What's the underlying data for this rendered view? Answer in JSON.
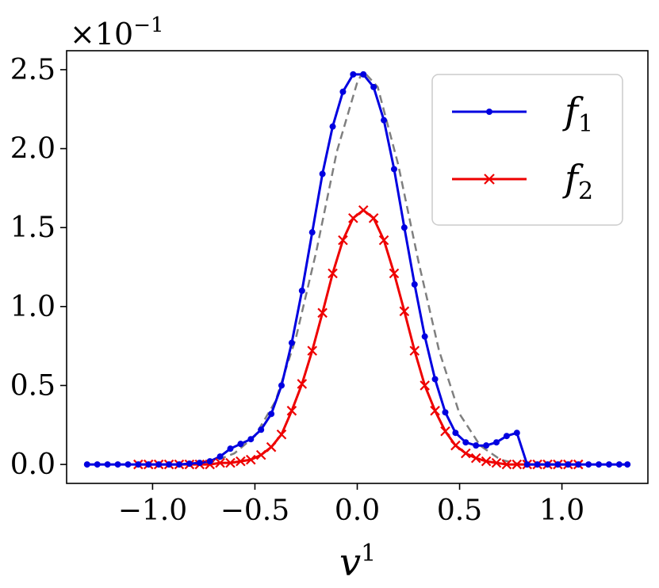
{
  "chart_data": {
    "type": "line",
    "xlabel": "v",
    "xlabel_sup": "1",
    "ylabel": "",
    "scale_factor": {
      "base": "×10",
      "exp": "−1"
    },
    "xlim": [
      -1.42,
      1.42
    ],
    "ylim": [
      -0.12,
      2.62
    ],
    "xticks": [
      {
        "value": -1.0,
        "label": "−1.0"
      },
      {
        "value": -0.5,
        "label": "−0.5"
      },
      {
        "value": 0.0,
        "label": "0.0"
      },
      {
        "value": 0.5,
        "label": "0.5"
      },
      {
        "value": 1.0,
        "label": "1.0"
      }
    ],
    "yticks": [
      {
        "value": 0.0,
        "label": "0.0"
      },
      {
        "value": 0.5,
        "label": "0.5"
      },
      {
        "value": 1.0,
        "label": "1.0"
      },
      {
        "value": 1.5,
        "label": "1.5"
      },
      {
        "value": 2.0,
        "label": "2.0"
      },
      {
        "value": 2.5,
        "label": "2.5"
      }
    ],
    "grid": false,
    "legend_position": "top-right",
    "series": [
      {
        "name": "f",
        "name_sub": "1",
        "color": "#0000e0",
        "marker": "dot",
        "x": [
          -1.32,
          -1.27,
          -1.22,
          -1.17,
          -1.12,
          -1.07,
          -1.02,
          -0.97,
          -0.92,
          -0.87,
          -0.82,
          -0.77,
          -0.72,
          -0.67,
          -0.62,
          -0.57,
          -0.52,
          -0.47,
          -0.42,
          -0.37,
          -0.32,
          -0.27,
          -0.22,
          -0.17,
          -0.12,
          -0.07,
          -0.02,
          0.03,
          0.08,
          0.13,
          0.18,
          0.23,
          0.28,
          0.33,
          0.38,
          0.43,
          0.48,
          0.53,
          0.58,
          0.63,
          0.68,
          0.73,
          0.78,
          0.83,
          0.88,
          0.93,
          0.98,
          1.03,
          1.08,
          1.13,
          1.18,
          1.23,
          1.28,
          1.32
        ],
        "y": [
          0.0,
          0.0,
          0.0,
          0.0,
          0.0,
          0.0,
          0.0,
          0.0,
          0.0,
          0.0,
          0.005,
          0.01,
          0.02,
          0.05,
          0.1,
          0.13,
          0.16,
          0.22,
          0.32,
          0.5,
          0.77,
          1.1,
          1.47,
          1.84,
          2.14,
          2.36,
          2.47,
          2.47,
          2.39,
          2.18,
          1.87,
          1.5,
          1.14,
          0.81,
          0.54,
          0.33,
          0.2,
          0.14,
          0.12,
          0.12,
          0.14,
          0.18,
          0.2,
          0.0,
          0.0,
          0.0,
          0.0,
          0.0,
          0.0,
          0.0,
          0.0,
          0.0,
          0.0,
          0.0
        ]
      },
      {
        "name": "f",
        "name_sub": "2",
        "color": "#ee0000",
        "marker": "x",
        "x": [
          -1.07,
          -1.02,
          -0.97,
          -0.92,
          -0.87,
          -0.82,
          -0.77,
          -0.72,
          -0.67,
          -0.62,
          -0.57,
          -0.52,
          -0.47,
          -0.42,
          -0.37,
          -0.32,
          -0.27,
          -0.22,
          -0.17,
          -0.12,
          -0.07,
          -0.02,
          0.03,
          0.08,
          0.13,
          0.18,
          0.23,
          0.28,
          0.33,
          0.38,
          0.43,
          0.48,
          0.53,
          0.58,
          0.63,
          0.68,
          0.73,
          0.78,
          0.83,
          0.88,
          0.93,
          0.98,
          1.03,
          1.08
        ],
        "y": [
          0.0,
          0.0,
          0.0,
          0.0,
          0.0,
          0.0,
          0.0,
          0.0,
          0.01,
          0.01,
          0.02,
          0.03,
          0.06,
          0.11,
          0.19,
          0.34,
          0.51,
          0.72,
          0.96,
          1.21,
          1.42,
          1.56,
          1.61,
          1.56,
          1.42,
          1.21,
          0.97,
          0.72,
          0.5,
          0.34,
          0.21,
          0.12,
          0.07,
          0.04,
          0.02,
          0.01,
          0.0,
          0.0,
          0.0,
          0.0,
          0.0,
          0.0,
          0.0,
          0.0
        ]
      },
      {
        "name": "",
        "color": "#7f7f7f",
        "marker": "dashed-line",
        "x": [
          -0.8,
          -0.7,
          -0.6,
          -0.5,
          -0.4,
          -0.3,
          -0.2,
          -0.1,
          0.0,
          0.03,
          0.1,
          0.2,
          0.3,
          0.4,
          0.5,
          0.6,
          0.7,
          0.8
        ],
        "y": [
          0.0,
          0.02,
          0.07,
          0.18,
          0.4,
          0.8,
          1.35,
          1.98,
          2.42,
          2.49,
          2.39,
          1.9,
          1.28,
          0.72,
          0.32,
          0.12,
          0.03,
          0.0
        ]
      }
    ]
  }
}
